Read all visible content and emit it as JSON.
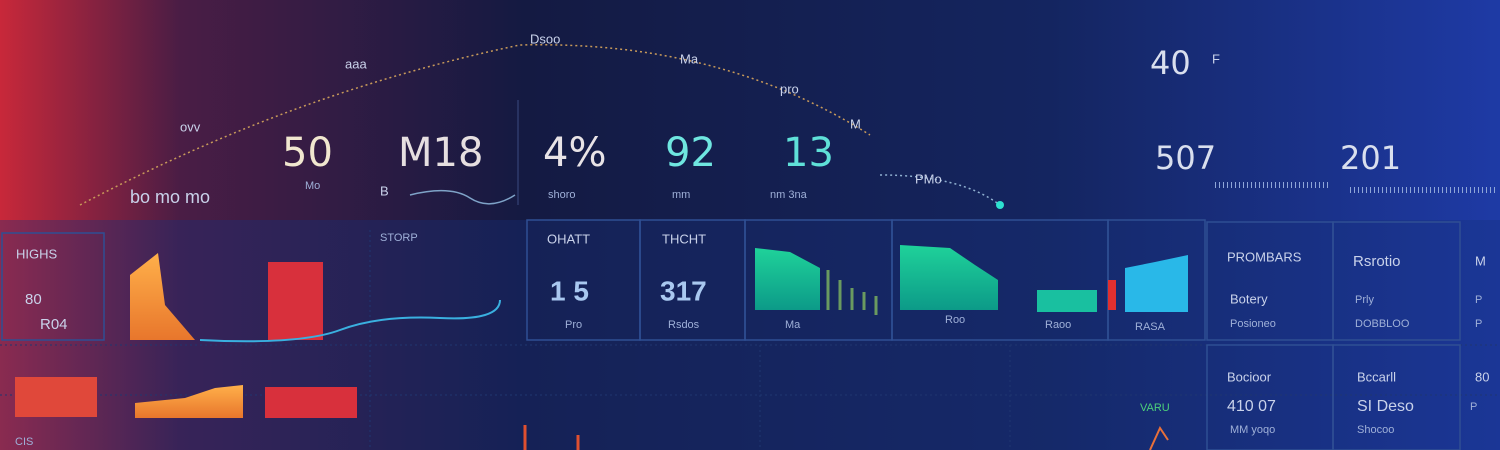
{
  "header": {
    "arc_labels": [
      "ovv",
      "aaa",
      "Dsoo",
      "Ma",
      "pro",
      "M"
    ],
    "bottom_labels": [
      "bo mo mo",
      "B",
      "shoro",
      "mm",
      "nm 3na",
      "PMo"
    ]
  },
  "metrics": [
    {
      "value": "50",
      "label": "Mo"
    },
    {
      "value": "M18",
      "label": ""
    },
    {
      "value": "4%",
      "label": "shoro"
    },
    {
      "value": "92",
      "label": "mm"
    },
    {
      "value": "13",
      "label": "nm"
    }
  ],
  "right_metrics": [
    {
      "value": "40",
      "unit": "F"
    },
    {
      "value": "507",
      "unit": ""
    },
    {
      "value": "201",
      "unit": ""
    }
  ],
  "panels": {
    "highs": {
      "title": "HIGHS",
      "line1": "80",
      "line2": "R04"
    },
    "storp": {
      "title": "STORP"
    },
    "ohatt": {
      "title": "OHATT",
      "value": "1 5",
      "caption": "Pro"
    },
    "thcht": {
      "title": "THCHT",
      "value": "317",
      "caption": "Rsdos"
    },
    "charts": {
      "caption1": "Ma",
      "caption2": "Roo",
      "caption3": "Raoo",
      "caption4": "RASA"
    }
  },
  "side": {
    "rows": [
      [
        "PROMBARS",
        "Rsrotio",
        "M"
      ],
      [
        "Botery",
        "Prly",
        "P"
      ],
      [
        "Posioneo",
        "DOBBLOO",
        "P"
      ],
      [
        "Bocioor",
        "Bccarll",
        "80"
      ],
      [
        "410 07",
        "SI Deso",
        "P"
      ],
      [
        "MM yoqo",
        "Shocoo",
        ""
      ]
    ]
  },
  "footer": {
    "left": "CIS",
    "green": "VARU"
  }
}
